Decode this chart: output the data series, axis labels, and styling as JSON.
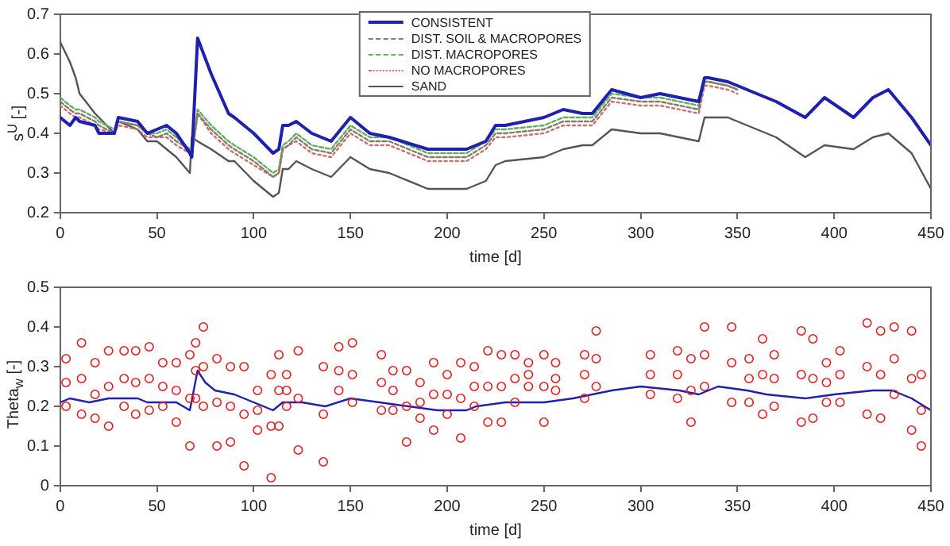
{
  "chart_data": [
    {
      "type": "line",
      "xlabel": "time [d]",
      "ylabel": "s$^{U}$ [-]",
      "xlim": [
        0,
        450
      ],
      "xticks": [
        0,
        50,
        100,
        150,
        200,
        250,
        300,
        350,
        400,
        450
      ],
      "ylim": [
        0.2,
        0.7
      ],
      "yticks": [
        0.2,
        0.3,
        0.4,
        0.5,
        0.6,
        0.7
      ],
      "legend": "top",
      "x": [
        0,
        5,
        8,
        10,
        18,
        20,
        28,
        30,
        40,
        45,
        50,
        55,
        60,
        67,
        68,
        71,
        78,
        87,
        90,
        100,
        110,
        113,
        115,
        118,
        122,
        130,
        140,
        150,
        160,
        170,
        190,
        210,
        220,
        225,
        230,
        250,
        260,
        270,
        275,
        285,
        300,
        310,
        330,
        333,
        335,
        345,
        350,
        370,
        385,
        395,
        410,
        420,
        428,
        440,
        450
      ],
      "series": [
        {
          "name": "CONSISTENT",
          "color": "#2020b0",
          "line_style": "solid",
          "values": [
            0.44,
            0.42,
            0.44,
            0.43,
            0.42,
            0.4,
            0.4,
            0.44,
            0.43,
            0.4,
            0.41,
            0.42,
            0.4,
            0.35,
            0.34,
            0.64,
            0.55,
            0.45,
            0.44,
            0.4,
            0.35,
            0.36,
            0.42,
            0.42,
            0.43,
            0.4,
            0.38,
            0.44,
            0.4,
            0.39,
            0.36,
            0.36,
            0.38,
            0.42,
            0.42,
            0.44,
            0.46,
            0.45,
            0.45,
            0.51,
            0.49,
            0.5,
            0.48,
            0.54,
            0.54,
            0.53,
            0.52,
            0.48,
            0.44,
            0.49,
            0.44,
            0.49,
            0.51,
            0.44,
            0.37
          ]
        },
        {
          "name": "DIST. SOIL & MACROPORES",
          "color": "#8a7a6a",
          "line_style": "dashed",
          "values": [
            0.48,
            0.46,
            0.45,
            0.45,
            0.43,
            0.42,
            0.4,
            0.43,
            0.42,
            0.4,
            0.39,
            0.4,
            0.38,
            0.36,
            0.34,
            0.45,
            0.41,
            0.37,
            0.36,
            0.33,
            0.29,
            0.3,
            0.36,
            0.37,
            0.39,
            0.36,
            0.35,
            0.41,
            0.38,
            0.38,
            0.34,
            0.34,
            0.37,
            0.4,
            0.4,
            0.41,
            0.43,
            0.43,
            0.43,
            0.49,
            0.48,
            0.48,
            0.46,
            0.53,
            0.53,
            0.52,
            0.51,
            null,
            null,
            null,
            null,
            null,
            null,
            null,
            null
          ]
        },
        {
          "name": "DIST. MACROPORES",
          "color": "#60b060",
          "line_style": "dashed",
          "values": [
            0.49,
            0.47,
            0.46,
            0.46,
            0.44,
            0.43,
            0.41,
            0.43,
            0.42,
            0.4,
            0.4,
            0.41,
            0.39,
            0.36,
            0.34,
            0.46,
            0.42,
            0.38,
            0.37,
            0.34,
            0.3,
            0.31,
            0.37,
            0.38,
            0.4,
            0.37,
            0.36,
            0.42,
            0.39,
            0.39,
            0.35,
            0.35,
            0.38,
            0.41,
            0.41,
            0.42,
            0.44,
            0.44,
            0.44,
            0.5,
            0.49,
            0.49,
            0.47,
            0.53,
            0.53,
            0.52,
            0.51,
            null,
            null,
            null,
            null,
            null,
            null,
            null,
            null
          ]
        },
        {
          "name": "NO MACROPORES",
          "color": "#c87070",
          "line_style": "dotted",
          "values": [
            0.47,
            0.45,
            0.44,
            0.44,
            0.42,
            0.41,
            0.4,
            0.42,
            0.41,
            0.39,
            0.39,
            0.39,
            0.37,
            0.35,
            0.34,
            0.45,
            0.4,
            0.36,
            0.35,
            0.32,
            0.29,
            0.3,
            0.36,
            0.37,
            0.38,
            0.35,
            0.34,
            0.4,
            0.37,
            0.37,
            0.33,
            0.33,
            0.36,
            0.39,
            0.39,
            0.4,
            0.42,
            0.42,
            0.42,
            0.48,
            0.47,
            0.47,
            0.45,
            0.52,
            0.52,
            0.51,
            0.5,
            null,
            null,
            null,
            null,
            null,
            null,
            null,
            null
          ]
        },
        {
          "name": "SAND",
          "color": "#555555",
          "line_style": "solid",
          "values": [
            0.63,
            0.58,
            0.54,
            0.5,
            0.45,
            0.44,
            0.4,
            0.43,
            0.41,
            0.38,
            0.38,
            0.36,
            0.34,
            0.3,
            0.39,
            0.38,
            0.36,
            0.33,
            0.33,
            0.28,
            0.24,
            0.25,
            0.31,
            0.31,
            0.33,
            0.31,
            0.29,
            0.34,
            0.31,
            0.3,
            0.26,
            0.26,
            0.28,
            0.32,
            0.33,
            0.34,
            0.36,
            0.37,
            0.37,
            0.41,
            0.4,
            0.4,
            0.38,
            0.44,
            0.44,
            0.44,
            0.43,
            0.39,
            0.34,
            0.37,
            0.36,
            0.39,
            0.4,
            0.35,
            0.26
          ]
        }
      ]
    },
    {
      "type": "scatter",
      "xlabel": "time [d]",
      "ylabel": "Theta$_{w}$ [-]",
      "xlim": [
        0,
        450
      ],
      "xticks": [
        0,
        50,
        100,
        150,
        200,
        250,
        300,
        350,
        400,
        450
      ],
      "ylim": [
        0,
        0.5
      ],
      "yticks": [
        0,
        0.1,
        0.2,
        0.3,
        0.4,
        0.5
      ],
      "series": [
        {
          "marker": "circle",
          "color": "#e02020",
          "x": [
            3,
            3,
            3,
            11,
            11,
            11,
            18,
            18,
            18,
            25,
            25,
            25,
            33,
            33,
            33,
            39,
            39,
            39,
            46,
            46,
            46,
            53,
            53,
            53,
            60,
            60,
            60,
            67,
            67,
            67,
            70,
            70,
            70,
            74,
            74,
            74,
            81,
            81,
            81,
            88,
            88,
            88,
            95,
            95,
            95,
            102,
            102,
            102,
            109,
            109,
            109,
            113,
            113,
            113,
            117,
            117,
            117,
            123,
            123,
            123,
            136,
            136,
            136,
            144,
            144,
            144,
            151,
            151,
            151,
            166,
            166,
            166,
            172,
            172,
            172,
            179,
            179,
            179,
            186,
            186,
            186,
            193,
            193,
            193,
            200,
            200,
            200,
            207,
            207,
            207,
            214,
            214,
            214,
            221,
            221,
            221,
            228,
            228,
            228,
            235,
            235,
            235,
            242,
            242,
            242,
            250,
            250,
            250,
            256,
            256,
            256,
            271,
            271,
            271,
            277,
            277,
            277,
            305,
            305,
            305,
            319,
            319,
            319,
            326,
            326,
            326,
            333,
            333,
            333,
            347,
            347,
            347,
            356,
            356,
            356,
            363,
            363,
            363,
            369,
            369,
            369,
            383,
            383,
            383,
            389,
            389,
            389,
            396,
            396,
            396,
            403,
            403,
            403,
            417,
            417,
            417,
            424,
            424,
            424,
            431,
            431,
            431,
            440,
            440,
            440,
            445,
            445,
            445
          ],
          "values": [
            0.2,
            0.26,
            0.32,
            0.18,
            0.27,
            0.36,
            0.17,
            0.23,
            0.31,
            0.15,
            0.25,
            0.34,
            0.2,
            0.27,
            0.34,
            0.18,
            0.26,
            0.34,
            0.19,
            0.27,
            0.35,
            0.2,
            0.25,
            0.31,
            0.16,
            0.24,
            0.31,
            0.1,
            0.22,
            0.33,
            0.22,
            0.29,
            0.36,
            0.2,
            0.3,
            0.4,
            0.1,
            0.21,
            0.32,
            0.11,
            0.2,
            0.3,
            0.05,
            0.18,
            0.3,
            0.14,
            0.19,
            0.24,
            0.02,
            0.15,
            0.28,
            0.15,
            0.24,
            0.33,
            0.2,
            0.24,
            0.28,
            0.09,
            0.22,
            0.34,
            0.06,
            0.18,
            0.3,
            0.24,
            0.29,
            0.35,
            0.21,
            0.28,
            0.36,
            0.19,
            0.26,
            0.33,
            0.19,
            0.24,
            0.29,
            0.11,
            0.2,
            0.29,
            0.17,
            0.21,
            0.26,
            0.14,
            0.23,
            0.31,
            0.18,
            0.23,
            0.28,
            0.12,
            0.22,
            0.31,
            0.2,
            0.25,
            0.3,
            0.16,
            0.25,
            0.34,
            0.16,
            0.25,
            0.33,
            0.21,
            0.27,
            0.33,
            0.25,
            0.28,
            0.31,
            0.16,
            0.25,
            0.33,
            0.24,
            0.27,
            0.31,
            0.22,
            0.28,
            0.33,
            0.25,
            0.32,
            0.39,
            0.23,
            0.28,
            0.33,
            0.22,
            0.28,
            0.34,
            0.16,
            0.24,
            0.32,
            0.25,
            0.33,
            0.4,
            0.21,
            0.31,
            0.4,
            0.21,
            0.27,
            0.32,
            0.18,
            0.28,
            0.37,
            0.2,
            0.27,
            0.33,
            0.16,
            0.28,
            0.39,
            0.17,
            0.27,
            0.37,
            0.21,
            0.26,
            0.31,
            0.21,
            0.28,
            0.34,
            0.18,
            0.3,
            0.41,
            0.17,
            0.28,
            0.39,
            0.23,
            0.32,
            0.4,
            0.14,
            0.27,
            0.39,
            0.1,
            0.19,
            0.28
          ]
        },
        {
          "type": "line",
          "color": "#2020b0",
          "x": [
            0,
            5,
            15,
            25,
            40,
            45,
            60,
            67,
            71,
            75,
            80,
            90,
            100,
            110,
            115,
            125,
            137,
            150,
            165,
            180,
            195,
            210,
            215,
            230,
            250,
            265,
            285,
            300,
            320,
            330,
            340,
            355,
            365,
            385,
            400,
            420,
            430,
            440,
            450
          ],
          "values": [
            0.21,
            0.22,
            0.21,
            0.22,
            0.22,
            0.21,
            0.21,
            0.19,
            0.29,
            0.26,
            0.24,
            0.23,
            0.21,
            0.19,
            0.21,
            0.21,
            0.2,
            0.22,
            0.21,
            0.2,
            0.19,
            0.19,
            0.2,
            0.21,
            0.21,
            0.22,
            0.24,
            0.25,
            0.24,
            0.23,
            0.25,
            0.24,
            0.23,
            0.22,
            0.23,
            0.24,
            0.24,
            0.22,
            0.19
          ]
        }
      ]
    }
  ]
}
